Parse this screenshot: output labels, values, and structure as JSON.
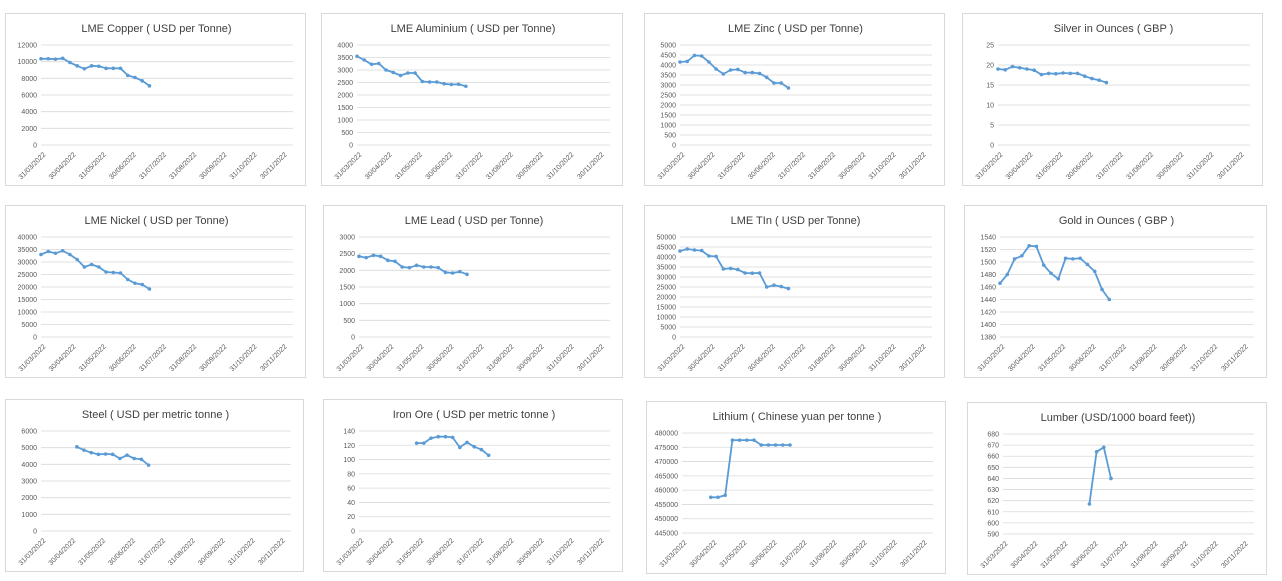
{
  "colors": {
    "line": "#5b9bd5",
    "grid": "#d9d9d9",
    "text": "#404040",
    "border": "#d9d9d9"
  },
  "x_tick_labels": [
    "31/03/2022",
    "30/04/2022",
    "31/05/2022",
    "30/06/2022",
    "31/07/2022",
    "31/08/2022",
    "30/09/2022",
    "31/10/2022",
    "30/11/2022"
  ],
  "chart_data": [
    {
      "type": "line",
      "title": "LME Copper ( USD per Tonne)",
      "ylim": [
        0,
        12000
      ],
      "yticks": [
        "0",
        "2000",
        "4000",
        "6000",
        "8000",
        "10000",
        "12000"
      ],
      "x_range_days": [
        0,
        244
      ],
      "series": [
        {
          "x": [
            0,
            7,
            14,
            21,
            28,
            35,
            42,
            49,
            56,
            63,
            70,
            77,
            84,
            91,
            98,
            105
          ],
          "y": [
            10350,
            10350,
            10300,
            10400,
            9900,
            9500,
            9150,
            9500,
            9450,
            9200,
            9200,
            9200,
            8350,
            8100,
            7700,
            7100
          ]
        }
      ]
    },
    {
      "type": "line",
      "title": "LME Aluminium ( USD per Tonne)",
      "ylim": [
        0,
        4000
      ],
      "yticks": [
        "0",
        "500",
        "1000",
        "1500",
        "2000",
        "2500",
        "3000",
        "3500",
        "4000"
      ],
      "x_range_days": [
        0,
        244
      ],
      "series": [
        {
          "x": [
            0,
            7,
            14,
            21,
            28,
            35,
            42,
            49,
            56,
            63,
            70,
            77,
            84,
            91,
            98,
            105
          ],
          "y": [
            3550,
            3400,
            3230,
            3260,
            3000,
            2900,
            2780,
            2880,
            2880,
            2540,
            2520,
            2520,
            2450,
            2420,
            2430,
            2350
          ]
        }
      ]
    },
    {
      "type": "line",
      "title": "LME Zinc ( USD per Tonne)",
      "ylim": [
        0,
        5000
      ],
      "yticks": [
        "0",
        "500",
        "1000",
        "1500",
        "2000",
        "2500",
        "3000",
        "3500",
        "4000",
        "4500",
        "5000"
      ],
      "x_range_days": [
        0,
        244
      ],
      "series": [
        {
          "x": [
            0,
            7,
            14,
            21,
            28,
            35,
            42,
            49,
            56,
            63,
            70,
            77,
            84,
            91,
            98,
            105
          ],
          "y": [
            4150,
            4180,
            4480,
            4450,
            4150,
            3800,
            3550,
            3750,
            3780,
            3620,
            3620,
            3580,
            3380,
            3100,
            3100,
            2850
          ]
        }
      ]
    },
    {
      "type": "line",
      "title": "Silver in Ounces ( GBP )",
      "ylim": [
        0,
        25
      ],
      "yticks": [
        "0",
        "5",
        "10",
        "15",
        "20",
        "25"
      ],
      "x_range_days": [
        0,
        244
      ],
      "series": [
        {
          "x": [
            0,
            7,
            14,
            21,
            28,
            35,
            42,
            49,
            56,
            63,
            70,
            77,
            84,
            91,
            98,
            105
          ],
          "y": [
            19.0,
            18.8,
            19.6,
            19.3,
            19.0,
            18.7,
            17.6,
            17.9,
            17.8,
            18.0,
            17.9,
            17.9,
            17.2,
            16.6,
            16.2,
            15.6
          ]
        }
      ]
    },
    {
      "type": "line",
      "title": "LME Nickel ( USD per Tonne)",
      "ylim": [
        0,
        40000
      ],
      "yticks": [
        "0",
        "5000",
        "10000",
        "15000",
        "20000",
        "25000",
        "30000",
        "35000",
        "40000"
      ],
      "x_range_days": [
        0,
        244
      ],
      "series": [
        {
          "x": [
            0,
            7,
            14,
            21,
            28,
            35,
            42,
            49,
            56,
            63,
            70,
            77,
            84,
            91,
            98,
            105
          ],
          "y": [
            33000,
            34200,
            33500,
            34500,
            33000,
            31000,
            28000,
            29000,
            28000,
            26000,
            25800,
            25600,
            23000,
            21500,
            21000,
            19200
          ]
        }
      ]
    },
    {
      "type": "line",
      "title": "LME Lead ( USD per Tonne)",
      "ylim": [
        0,
        3000
      ],
      "yticks": [
        "0",
        "500",
        "1000",
        "1500",
        "2000",
        "2500",
        "3000"
      ],
      "x_range_days": [
        0,
        244
      ],
      "series": [
        {
          "x": [
            0,
            7,
            14,
            21,
            28,
            35,
            42,
            49,
            56,
            63,
            70,
            77,
            84,
            91,
            98,
            105
          ],
          "y": [
            2420,
            2380,
            2450,
            2420,
            2300,
            2270,
            2100,
            2080,
            2150,
            2100,
            2100,
            2080,
            1940,
            1920,
            1960,
            1880
          ]
        }
      ]
    },
    {
      "type": "line",
      "title": "LME TIn ( USD per Tonne)",
      "ylim": [
        0,
        50000
      ],
      "yticks": [
        "0",
        "5000",
        "10000",
        "15000",
        "20000",
        "25000",
        "30000",
        "35000",
        "40000",
        "45000",
        "50000"
      ],
      "x_range_days": [
        0,
        244
      ],
      "series": [
        {
          "x": [
            0,
            7,
            14,
            21,
            28,
            35,
            42,
            49,
            56,
            63,
            70,
            77,
            84,
            91,
            98,
            105
          ],
          "y": [
            43000,
            44000,
            43500,
            43200,
            40500,
            40300,
            34000,
            34300,
            33700,
            32000,
            31900,
            32000,
            25000,
            25900,
            25200,
            24200
          ]
        }
      ]
    },
    {
      "type": "line",
      "title": "Gold in Ounces ( GBP )",
      "ylim": [
        1380,
        1540
      ],
      "yticks": [
        "1380",
        "1400",
        "1420",
        "1440",
        "1460",
        "1480",
        "1500",
        "1520",
        "1540"
      ],
      "x_range_days": [
        0,
        244
      ],
      "series": [
        {
          "x": [
            0,
            7,
            14,
            21,
            28,
            35,
            42,
            49,
            56,
            63,
            70,
            77,
            84,
            91,
            98,
            105
          ],
          "y": [
            1466,
            1480,
            1505,
            1510,
            1526,
            1525,
            1495,
            1482,
            1473,
            1506,
            1505,
            1506,
            1496,
            1485,
            1456,
            1440
          ]
        }
      ]
    },
    {
      "type": "line",
      "title": "Steel ( USD per metric tonne )",
      "ylim": [
        0,
        6000
      ],
      "yticks": [
        "0",
        "1000",
        "2000",
        "3000",
        "4000",
        "5000",
        "6000"
      ],
      "x_range_days": [
        0,
        244
      ],
      "series": [
        {
          "x": [
            35,
            42,
            49,
            56,
            63,
            70,
            77,
            84,
            91,
            98,
            105
          ],
          "y": [
            5050,
            4850,
            4700,
            4600,
            4620,
            4600,
            4350,
            4550,
            4350,
            4300,
            3950
          ]
        }
      ]
    },
    {
      "type": "line",
      "title": "Iron Ore ( USD per metric tonne )",
      "ylim": [
        0,
        140
      ],
      "yticks": [
        "0",
        "20",
        "40",
        "60",
        "80",
        "100",
        "120",
        "140"
      ],
      "x_range_days": [
        0,
        244
      ],
      "series": [
        {
          "x": [
            56,
            63,
            70,
            77,
            84,
            91,
            98,
            105,
            112,
            119,
            126
          ],
          "y": [
            123,
            123,
            130,
            132,
            132,
            131,
            117,
            124,
            118,
            114,
            106
          ]
        }
      ]
    },
    {
      "type": "line",
      "title": "Lithium ( Chinese yuan per tonne )",
      "ylim": [
        445000,
        480000
      ],
      "yticks": [
        "445000",
        "450000",
        "455000",
        "460000",
        "465000",
        "470000",
        "475000",
        "480000"
      ],
      "x_range_days": [
        0,
        244
      ],
      "series": [
        {
          "x": [
            28,
            35,
            42,
            49,
            56,
            63,
            70,
            77,
            84,
            91,
            98,
            105
          ],
          "y": [
            457500,
            457500,
            458200,
            477500,
            477500,
            477500,
            477500,
            475800,
            475800,
            475800,
            475800,
            475800
          ]
        }
      ]
    },
    {
      "type": "line",
      "title": "Lumber (USD/1000 board feet))",
      "ylim": [
        590,
        680
      ],
      "yticks": [
        "590",
        "600",
        "610",
        "620",
        "630",
        "640",
        "650",
        "660",
        "670",
        "680"
      ],
      "x_range_days": [
        0,
        244
      ],
      "series": [
        {
          "x": [
            84,
            91,
            98,
            105
          ],
          "y": [
            617,
            664,
            668,
            640
          ]
        }
      ]
    }
  ]
}
